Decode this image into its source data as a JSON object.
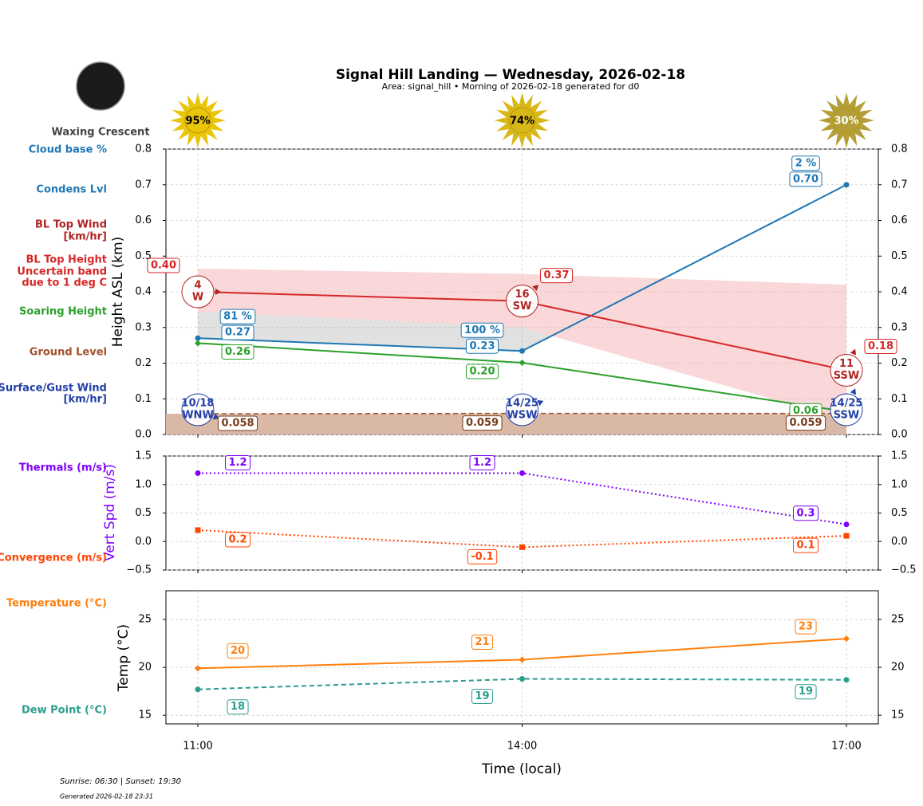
{
  "header": {
    "title": "Signal Hill Landing — Wednesday, 2026-02-18",
    "subtitle": "Area: signal_hill • Morning of 2026-02-18 generated for d0",
    "moon_phase": "Waxing Crescent",
    "sun_percent": [
      95,
      74,
      30
    ],
    "sun_percent_labels": [
      "95%",
      "74%",
      "30%"
    ]
  },
  "chart_data": [
    {
      "type": "line",
      "ylabel": "Height ASL (km)",
      "ylim": [
        0,
        0.8
      ],
      "yticks": [
        {
          "value": 0,
          "label": "0.0"
        },
        {
          "value": 0.1,
          "label": "0.1"
        },
        {
          "value": 0.2,
          "label": "0.2"
        },
        {
          "value": 0.3,
          "label": "0.3"
        },
        {
          "value": 0.4,
          "label": "0.4"
        },
        {
          "value": 0.5,
          "label": "0.5"
        },
        {
          "value": 0.6,
          "label": "0.6"
        },
        {
          "value": 0.7,
          "label": "0.7"
        },
        {
          "value": 0.8,
          "label": "0.8"
        }
      ],
      "grid": true,
      "series": [
        {
          "name": "Condens Lvl",
          "color": "#1f77b4",
          "marker": "circle",
          "values": [
            0.27,
            0.234,
            0.7
          ],
          "value_labels": [
            "0.27",
            "0.23",
            "0.70"
          ]
        },
        {
          "name": "BL Top Height",
          "color": "#d62728",
          "values": [
            0.4,
            0.374,
            0.18
          ],
          "value_labels": [
            "0.40",
            "0.37",
            "0.18"
          ]
        },
        {
          "name": "Soaring Height",
          "color": "#2ca02c",
          "marker": "diamond",
          "values": [
            0.256,
            0.201,
            0.064
          ],
          "value_labels": [
            "0.26",
            "0.20",
            "0.06"
          ]
        },
        {
          "name": "Ground Level",
          "color": "#a0522d",
          "line_style": "dashed",
          "fill": "#d9b9a6",
          "values": [
            0.058,
            0.059,
            0.059
          ]
        }
      ],
      "cloud_base": {
        "name": "Cloud base %",
        "color": "#1f77b4",
        "values": [
          81,
          100,
          2
        ],
        "value_labels": [
          "81 %",
          "100 %",
          "2 %"
        ]
      },
      "band": {
        "name": [
          "Uncertain band",
          "due to 1 deg C"
        ],
        "color": "#f4a6aa",
        "upper": [
          0.465,
          0.45,
          0.42
        ],
        "lower": [
          0.345,
          0.3,
          0.04
        ]
      },
      "bl_top_wind": {
        "name": [
          "BL Top Wind",
          "[km/hr]"
        ],
        "color": "#b22222",
        "speeds": [
          4,
          16,
          11
        ],
        "directions": [
          "W",
          "SW",
          "SSW"
        ],
        "direction_deg": [
          270,
          225,
          202.5
        ]
      },
      "surface_wind": {
        "name": [
          "Surface/Gust Wind",
          "[km/hr]"
        ],
        "color": "#2340a8",
        "speeds": [
          10,
          14,
          14
        ],
        "gusts": [
          18,
          25,
          25
        ],
        "value_labels": [
          "10/18",
          "14/25",
          "14/25"
        ],
        "directions": [
          "WNW",
          "WSW",
          "SSW"
        ],
        "direction_deg": [
          292.5,
          247.5,
          202.5
        ]
      }
    },
    {
      "type": "line",
      "ylabel": "Vert Spd (m/s)",
      "ylabel_color": "#7f00ff",
      "ylim": [
        -0.5,
        1.5
      ],
      "yticks": [
        {
          "value": -0.5,
          "label": "−0.5"
        },
        {
          "value": 0,
          "label": "0.0"
        },
        {
          "value": 0.5,
          "label": "0.5"
        },
        {
          "value": 1,
          "label": "1.0"
        },
        {
          "value": 1.5,
          "label": "1.5"
        }
      ],
      "grid": true,
      "series": [
        {
          "name": "Thermals (m/s)",
          "color": "#7f00ff",
          "line_style": "dotted",
          "marker": "circle",
          "values": [
            1.2,
            1.2,
            0.3
          ]
        },
        {
          "name": "Convergence (m/s)",
          "color": "#ff4500",
          "line_style": "dotted",
          "marker": "square",
          "values": [
            0.2,
            -0.1,
            0.1
          ]
        }
      ]
    },
    {
      "type": "line",
      "ylabel": "Temp (°C)",
      "xlabel": "Time (local)",
      "categories": [
        "11:00",
        "14:00",
        "17:00"
      ],
      "ylim": [
        14.1,
        28
      ],
      "yticks": [
        15,
        20,
        25
      ],
      "grid": true,
      "series": [
        {
          "name": "Temperature (°C)",
          "color": "#ff7f0e",
          "marker": "diamond",
          "values": [
            19.9,
            20.8,
            23
          ],
          "value_labels": [
            "20",
            "21",
            "23"
          ]
        },
        {
          "name": "Dew Point (°C)",
          "color": "#2a9d8f",
          "line_style": "dashed",
          "marker": "circle",
          "values": [
            17.7,
            18.8,
            18.7
          ],
          "value_labels": [
            "18",
            "19",
            "19"
          ]
        }
      ]
    }
  ],
  "footer": {
    "sun_times": "Sunrise: 06:30 | Sunset: 19:30",
    "generated": "Generated 2026-02-18 23:31"
  }
}
